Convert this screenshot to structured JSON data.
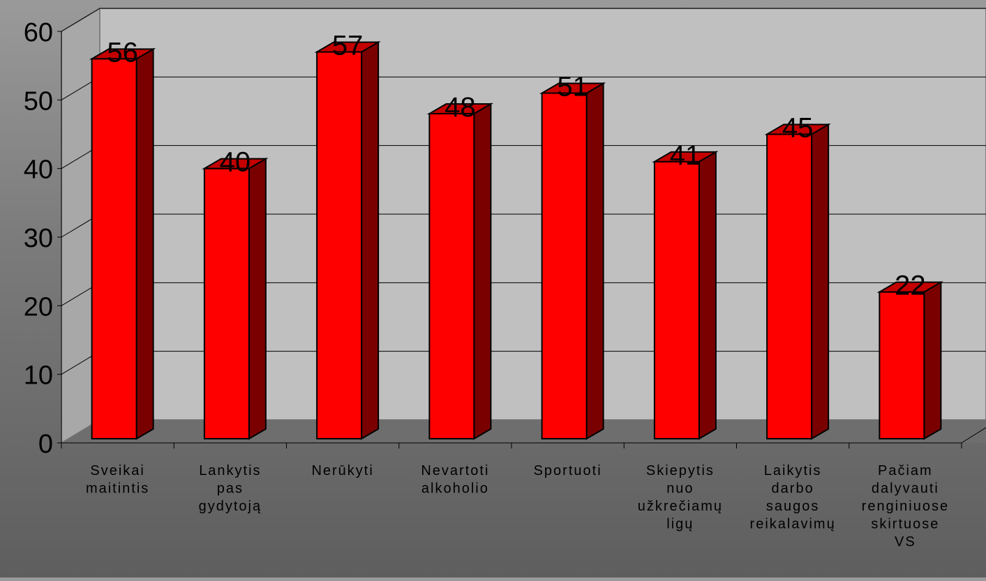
{
  "chart_data": {
    "type": "bar",
    "three_d": true,
    "categories": [
      [
        "Sveikai",
        "maitintis"
      ],
      [
        "Lankytis",
        "pas",
        "gydytoją"
      ],
      [
        "Nerūkyti"
      ],
      [
        "Nevartoti",
        "alkoholio"
      ],
      [
        "Sportuoti"
      ],
      [
        "Skiepytis",
        "nuo",
        "užkrečiamų",
        "ligų"
      ],
      [
        "Laikytis",
        "darbo",
        "saugos",
        "reikalavimų"
      ],
      [
        "Pačiam",
        "dalyvauti",
        "renginiuose",
        "skirtuose",
        "VS"
      ]
    ],
    "values": [
      56,
      40,
      57,
      48,
      51,
      41,
      45,
      22
    ],
    "data_labels": [
      "56",
      "40",
      "57",
      "48",
      "51",
      "41",
      "45",
      "22"
    ],
    "y_ticks": [
      "0",
      "10",
      "20",
      "30",
      "40",
      "50",
      "60"
    ],
    "ylim": [
      0,
      60
    ],
    "grid": true,
    "legend": "none",
    "colors": {
      "bar_front": "#ff0000",
      "bar_side": "#7a0000",
      "bar_top": "#c40000",
      "back_wall": "#c0c0c0",
      "floor": "#6e6e6e",
      "gridline": "#000000"
    }
  }
}
